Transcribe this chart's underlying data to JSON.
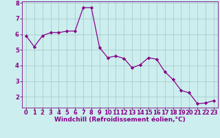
{
  "x": [
    0,
    1,
    2,
    3,
    4,
    5,
    6,
    7,
    8,
    9,
    10,
    11,
    12,
    13,
    14,
    15,
    16,
    17,
    18,
    19,
    20,
    21,
    22,
    23
  ],
  "y": [
    5.9,
    5.2,
    5.9,
    6.1,
    6.1,
    6.2,
    6.2,
    7.7,
    7.7,
    5.15,
    4.5,
    4.6,
    4.45,
    3.85,
    4.05,
    4.5,
    4.4,
    3.6,
    3.1,
    2.4,
    2.25,
    1.55,
    1.6,
    1.75
  ],
  "line_color": "#880088",
  "marker": "D",
  "marker_size": 2.2,
  "bg_color": "#cceeee",
  "grid_color": "#aacccc",
  "xlabel": "Windchill (Refroidissement éolien,°C)",
  "ylabel": "",
  "ylim": [
    1.3,
    8.1
  ],
  "xlim": [
    -0.5,
    23.5
  ],
  "yticks": [
    2,
    3,
    4,
    5,
    6,
    7,
    8
  ],
  "xticks": [
    0,
    1,
    2,
    3,
    4,
    5,
    6,
    7,
    8,
    9,
    10,
    11,
    12,
    13,
    14,
    15,
    16,
    17,
    18,
    19,
    20,
    21,
    22,
    23
  ],
  "label_fontsize": 6.5,
  "tick_fontsize": 6.0
}
